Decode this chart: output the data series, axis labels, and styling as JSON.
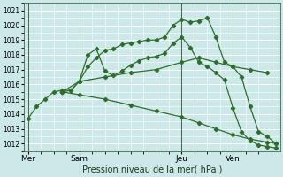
{
  "xlabel": "Pression niveau de la mer( hPa )",
  "bg_color": "#cce8e8",
  "plot_bg_color": "#cce8e8",
  "grid_color": "#ffffff",
  "line_color": "#2d6e2d",
  "ylim": [
    1011.5,
    1021.5
  ],
  "yticks": [
    1012,
    1013,
    1014,
    1015,
    1016,
    1017,
    1018,
    1019,
    1020,
    1021
  ],
  "xtick_labels": [
    "Mer",
    "Sam",
    "Jeu",
    "Ven"
  ],
  "xtick_positions": [
    0,
    24,
    72,
    96
  ],
  "vlines": [
    0,
    24,
    72,
    96
  ],
  "xlim": [
    -2,
    118
  ],
  "series": [
    {
      "x": [
        0,
        4,
        8,
        12,
        16,
        20,
        24,
        28,
        32,
        36,
        40,
        44,
        48,
        52,
        56,
        60,
        64,
        68,
        72,
        76,
        80,
        84,
        88,
        92,
        96,
        100,
        104,
        108,
        112,
        116
      ],
      "y": [
        1013.7,
        1014.5,
        1015.0,
        1015.5,
        1015.6,
        1015.6,
        1016.2,
        1017.2,
        1017.8,
        1018.3,
        1018.4,
        1018.7,
        1018.8,
        1018.9,
        1019.0,
        1019.0,
        1019.2,
        1020.0,
        1020.4,
        1020.2,
        1020.3,
        1020.5,
        1019.2,
        1017.5,
        1017.2,
        1016.5,
        1014.5,
        1012.8,
        1012.5,
        1012.0
      ]
    },
    {
      "x": [
        16,
        20,
        24,
        28,
        32,
        36,
        40,
        44,
        48,
        52,
        56,
        60,
        64,
        68,
        72,
        76,
        80,
        84,
        88,
        92,
        96,
        100,
        104,
        108,
        112,
        116
      ],
      "y": [
        1015.5,
        1015.6,
        1016.2,
        1018.0,
        1018.4,
        1016.9,
        1016.6,
        1016.9,
        1017.3,
        1017.6,
        1017.8,
        1017.9,
        1018.1,
        1018.8,
        1019.2,
        1018.5,
        1017.5,
        1017.2,
        1016.8,
        1016.3,
        1014.4,
        1012.8,
        1012.2,
        1011.9,
        1011.8,
        1011.7
      ]
    },
    {
      "x": [
        16,
        24,
        36,
        48,
        60,
        72,
        80,
        88,
        96,
        104,
        112
      ],
      "y": [
        1015.5,
        1016.2,
        1016.5,
        1016.8,
        1017.0,
        1017.5,
        1017.8,
        1017.5,
        1017.2,
        1017.0,
        1016.8
      ]
    },
    {
      "x": [
        16,
        24,
        36,
        48,
        60,
        72,
        80,
        88,
        96,
        104,
        112,
        116
      ],
      "y": [
        1015.5,
        1015.3,
        1015.0,
        1014.6,
        1014.2,
        1013.8,
        1013.4,
        1013.0,
        1012.6,
        1012.3,
        1012.1,
        1012.0
      ]
    }
  ]
}
